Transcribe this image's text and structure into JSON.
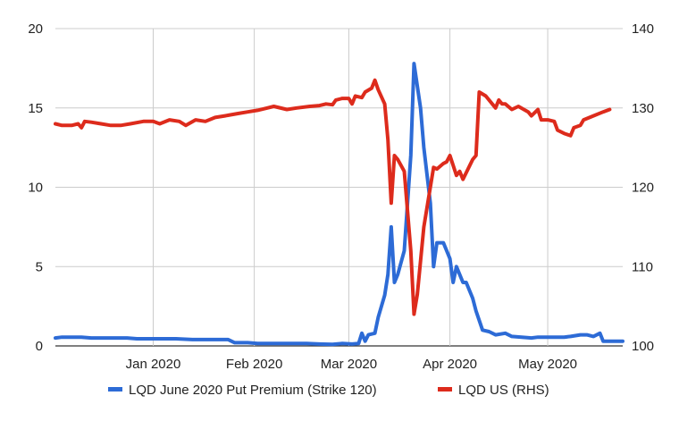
{
  "chart_data": {
    "type": "line",
    "title": "",
    "xlabel": "",
    "ylabel_left": "",
    "ylabel_right": "",
    "x_tick_labels": [
      "Jan 2020",
      "Feb 2020",
      "Mar 2020",
      "Apr 2020",
      "May 2020"
    ],
    "y_left_ticks": [
      0,
      5,
      10,
      15,
      20
    ],
    "y_right_ticks": [
      100,
      110,
      120,
      130,
      140
    ],
    "y_left_lim": [
      0,
      20
    ],
    "y_right_lim": [
      100,
      140
    ],
    "grid": true,
    "legend_position": "bottom",
    "series": [
      {
        "name": "LQD June 2020 Put Premium (Strike 120)",
        "axis": "left",
        "color": "#2d6bd6",
        "points": [
          [
            "2019-12-02",
            0.5
          ],
          [
            "2019-12-04",
            0.55
          ],
          [
            "2019-12-06",
            0.55
          ],
          [
            "2019-12-10",
            0.55
          ],
          [
            "2019-12-13",
            0.5
          ],
          [
            "2019-12-17",
            0.5
          ],
          [
            "2019-12-20",
            0.5
          ],
          [
            "2019-12-24",
            0.5
          ],
          [
            "2019-12-27",
            0.45
          ],
          [
            "2019-12-31",
            0.45
          ],
          [
            "2020-01-03",
            0.45
          ],
          [
            "2020-01-08",
            0.45
          ],
          [
            "2020-01-13",
            0.4
          ],
          [
            "2020-01-17",
            0.4
          ],
          [
            "2020-01-22",
            0.4
          ],
          [
            "2020-01-24",
            0.4
          ],
          [
            "2020-01-26",
            0.2
          ],
          [
            "2020-01-30",
            0.2
          ],
          [
            "2020-02-02",
            0.15
          ],
          [
            "2020-02-07",
            0.15
          ],
          [
            "2020-02-12",
            0.15
          ],
          [
            "2020-02-17",
            0.15
          ],
          [
            "2020-02-21",
            0.12
          ],
          [
            "2020-02-25",
            0.1
          ],
          [
            "2020-02-28",
            0.15
          ],
          [
            "2020-03-02",
            0.12
          ],
          [
            "2020-03-04",
            0.15
          ],
          [
            "2020-03-05",
            0.8
          ],
          [
            "2020-03-06",
            0.3
          ],
          [
            "2020-03-07",
            0.7
          ],
          [
            "2020-03-09",
            0.8
          ],
          [
            "2020-03-10",
            1.8
          ],
          [
            "2020-03-12",
            3.2
          ],
          [
            "2020-03-13",
            4.5
          ],
          [
            "2020-03-14",
            7.5
          ],
          [
            "2020-03-15",
            4.0
          ],
          [
            "2020-03-16",
            4.5
          ],
          [
            "2020-03-18",
            6.0
          ],
          [
            "2020-03-20",
            12.0
          ],
          [
            "2020-03-21",
            17.8
          ],
          [
            "2020-03-23",
            15.0
          ],
          [
            "2020-03-24",
            12.5
          ],
          [
            "2020-03-26",
            9.0
          ],
          [
            "2020-03-27",
            5.0
          ],
          [
            "2020-03-28",
            6.5
          ],
          [
            "2020-03-30",
            6.5
          ],
          [
            "2020-04-01",
            5.5
          ],
          [
            "2020-04-02",
            4.0
          ],
          [
            "2020-04-03",
            5.0
          ],
          [
            "2020-04-05",
            4.0
          ],
          [
            "2020-04-06",
            4.0
          ],
          [
            "2020-04-08",
            3.0
          ],
          [
            "2020-04-09",
            2.2
          ],
          [
            "2020-04-11",
            1.0
          ],
          [
            "2020-04-13",
            0.9
          ],
          [
            "2020-04-15",
            0.7
          ],
          [
            "2020-04-18",
            0.8
          ],
          [
            "2020-04-20",
            0.6
          ],
          [
            "2020-04-23",
            0.55
          ],
          [
            "2020-04-26",
            0.5
          ],
          [
            "2020-04-28",
            0.55
          ],
          [
            "2020-05-01",
            0.55
          ],
          [
            "2020-05-04",
            0.55
          ],
          [
            "2020-05-06",
            0.55
          ],
          [
            "2020-05-08",
            0.6
          ],
          [
            "2020-05-11",
            0.7
          ],
          [
            "2020-05-13",
            0.7
          ],
          [
            "2020-05-15",
            0.6
          ],
          [
            "2020-05-17",
            0.8
          ],
          [
            "2020-05-18",
            0.3
          ],
          [
            "2020-05-21",
            0.3
          ],
          [
            "2020-05-24",
            0.3
          ]
        ]
      },
      {
        "name": "LQD US (RHS)",
        "axis": "right",
        "color": "#dd2b1c",
        "points": [
          [
            "2019-12-02",
            128.0
          ],
          [
            "2019-12-04",
            127.8
          ],
          [
            "2019-12-07",
            127.8
          ],
          [
            "2019-12-09",
            128.0
          ],
          [
            "2019-12-10",
            127.5
          ],
          [
            "2019-12-11",
            128.3
          ],
          [
            "2019-12-13",
            128.2
          ],
          [
            "2019-12-16",
            128.0
          ],
          [
            "2019-12-19",
            127.8
          ],
          [
            "2019-12-22",
            127.8
          ],
          [
            "2019-12-25",
            128.0
          ],
          [
            "2019-12-29",
            128.3
          ],
          [
            "2020-01-01",
            128.3
          ],
          [
            "2020-01-03",
            128.0
          ],
          [
            "2020-01-06",
            128.5
          ],
          [
            "2020-01-09",
            128.3
          ],
          [
            "2020-01-11",
            127.8
          ],
          [
            "2020-01-14",
            128.5
          ],
          [
            "2020-01-17",
            128.3
          ],
          [
            "2020-01-20",
            128.8
          ],
          [
            "2020-01-23",
            129.0
          ],
          [
            "2020-01-27",
            129.3
          ],
          [
            "2020-01-30",
            129.5
          ],
          [
            "2020-02-02",
            129.7
          ],
          [
            "2020-02-05",
            130.0
          ],
          [
            "2020-02-07",
            130.2
          ],
          [
            "2020-02-11",
            129.8
          ],
          [
            "2020-02-14",
            130.0
          ],
          [
            "2020-02-18",
            130.2
          ],
          [
            "2020-02-21",
            130.3
          ],
          [
            "2020-02-23",
            130.5
          ],
          [
            "2020-02-25",
            130.4
          ],
          [
            "2020-02-26",
            131.0
          ],
          [
            "2020-02-28",
            131.2
          ],
          [
            "2020-03-01",
            131.2
          ],
          [
            "2020-03-02",
            130.5
          ],
          [
            "2020-03-03",
            131.5
          ],
          [
            "2020-03-05",
            131.3
          ],
          [
            "2020-03-06",
            132.0
          ],
          [
            "2020-03-08",
            132.5
          ],
          [
            "2020-03-09",
            133.5
          ],
          [
            "2020-03-10",
            132.3
          ],
          [
            "2020-03-12",
            130.5
          ],
          [
            "2020-03-13",
            126.0
          ],
          [
            "2020-03-14",
            118.0
          ],
          [
            "2020-03-15",
            124.0
          ],
          [
            "2020-03-16",
            123.5
          ],
          [
            "2020-03-18",
            122.0
          ],
          [
            "2020-03-20",
            112.0
          ],
          [
            "2020-03-21",
            104.0
          ],
          [
            "2020-03-22",
            106.5
          ],
          [
            "2020-03-24",
            115.0
          ],
          [
            "2020-03-27",
            122.5
          ],
          [
            "2020-03-28",
            122.3
          ],
          [
            "2020-03-30",
            123.0
          ],
          [
            "2020-03-31",
            123.2
          ],
          [
            "2020-04-01",
            124.0
          ],
          [
            "2020-04-03",
            121.5
          ],
          [
            "2020-04-04",
            122.0
          ],
          [
            "2020-04-05",
            121.0
          ],
          [
            "2020-04-08",
            123.5
          ],
          [
            "2020-04-09",
            124.0
          ],
          [
            "2020-04-10",
            132.0
          ],
          [
            "2020-04-12",
            131.5
          ],
          [
            "2020-04-15",
            130.0
          ],
          [
            "2020-04-16",
            131.0
          ],
          [
            "2020-04-17",
            130.5
          ],
          [
            "2020-04-18",
            130.5
          ],
          [
            "2020-04-20",
            129.8
          ],
          [
            "2020-04-22",
            130.2
          ],
          [
            "2020-04-25",
            129.5
          ],
          [
            "2020-04-26",
            129.0
          ],
          [
            "2020-04-28",
            129.8
          ],
          [
            "2020-04-29",
            128.5
          ],
          [
            "2020-05-01",
            128.5
          ],
          [
            "2020-05-03",
            128.3
          ],
          [
            "2020-05-04",
            127.2
          ],
          [
            "2020-05-06",
            126.8
          ],
          [
            "2020-05-08",
            126.5
          ],
          [
            "2020-05-09",
            127.5
          ],
          [
            "2020-05-11",
            127.8
          ],
          [
            "2020-05-12",
            128.5
          ],
          [
            "2020-05-15",
            129.0
          ],
          [
            "2020-05-18",
            129.5
          ],
          [
            "2020-05-20",
            129.8
          ]
        ]
      }
    ]
  }
}
